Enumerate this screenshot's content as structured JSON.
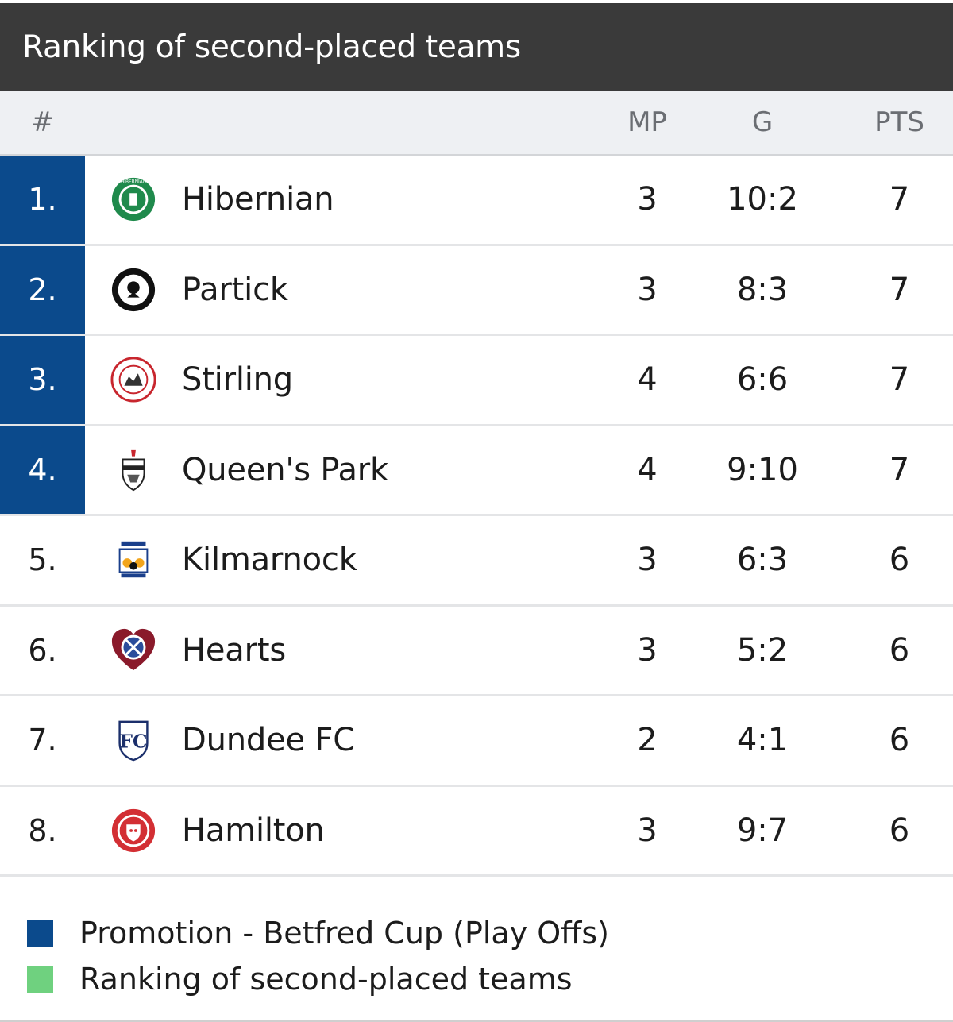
{
  "title": "Ranking of second-placed teams",
  "headers": {
    "rank": "#",
    "mp": "MP",
    "goals": "G",
    "points": "PTS"
  },
  "colors": {
    "title_bar": "#3a3a3a",
    "promotion": "#0b4a8c",
    "second_place": "#6fd17f"
  },
  "teams": [
    {
      "rank": "1.",
      "name": "Hibernian",
      "mp": "3",
      "goals": "10:2",
      "pts": "7",
      "crest": "hibernian-crest",
      "promotion": true
    },
    {
      "rank": "2.",
      "name": "Partick",
      "mp": "3",
      "goals": "8:3",
      "pts": "7",
      "crest": "partick-crest",
      "promotion": true
    },
    {
      "rank": "3.",
      "name": "Stirling",
      "mp": "4",
      "goals": "6:6",
      "pts": "7",
      "crest": "stirling-crest",
      "promotion": true
    },
    {
      "rank": "4.",
      "name": "Queen's Park",
      "mp": "4",
      "goals": "9:10",
      "pts": "7",
      "crest": "queens-park-crest",
      "promotion": true
    },
    {
      "rank": "5.",
      "name": "Kilmarnock",
      "mp": "3",
      "goals": "6:3",
      "pts": "6",
      "crest": "kilmarnock-crest",
      "promotion": false
    },
    {
      "rank": "6.",
      "name": "Hearts",
      "mp": "3",
      "goals": "5:2",
      "pts": "6",
      "crest": "hearts-crest",
      "promotion": false
    },
    {
      "rank": "7.",
      "name": "Dundee FC",
      "mp": "2",
      "goals": "4:1",
      "pts": "6",
      "crest": "dundee-crest",
      "promotion": false
    },
    {
      "rank": "8.",
      "name": "Hamilton",
      "mp": "3",
      "goals": "9:7",
      "pts": "6",
      "crest": "hamilton-crest",
      "promotion": false
    }
  ],
  "legend": [
    {
      "label": "Promotion - Betfred Cup (Play Offs)",
      "color": "#0b4a8c"
    },
    {
      "label": "Ranking of second-placed teams",
      "color": "#6fd17f"
    }
  ]
}
